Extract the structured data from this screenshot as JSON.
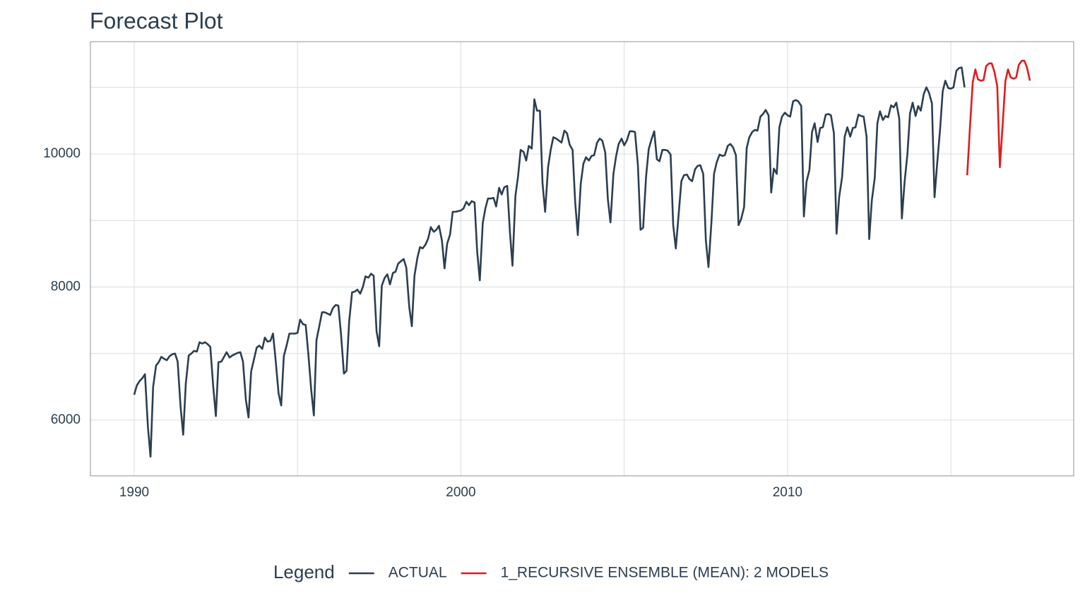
{
  "chart_data": {
    "type": "line",
    "title": "Forecast Plot",
    "legend_title": "Legend",
    "legend_position": "bottom",
    "grid": true,
    "xlim": [
      1988.66,
      2018.76
    ],
    "ylim": [
      5162,
      11687
    ],
    "xticks": [
      1990,
      2000,
      2010
    ],
    "yticks": [
      6000,
      8000,
      10000
    ],
    "x_minor_grid": [
      1995,
      2005,
      2015
    ],
    "y_minor_grid": [
      7000,
      9000,
      11000
    ],
    "series": [
      {
        "name": "ACTUAL",
        "color": "#2c3e50",
        "x": [
          1990,
          1990.08,
          1990.17,
          1990.25,
          1990.33,
          1990.42,
          1990.5,
          1990.58,
          1990.67,
          1990.75,
          1990.83,
          1990.92,
          1991,
          1991.08,
          1991.17,
          1991.25,
          1991.33,
          1991.42,
          1991.5,
          1991.58,
          1991.67,
          1991.75,
          1991.83,
          1991.92,
          1992,
          1992.08,
          1992.17,
          1992.25,
          1992.33,
          1992.42,
          1992.5,
          1992.58,
          1992.67,
          1992.75,
          1992.83,
          1992.92,
          1993,
          1993.08,
          1993.17,
          1993.25,
          1993.33,
          1993.42,
          1993.5,
          1993.58,
          1993.67,
          1993.75,
          1993.83,
          1993.92,
          1994,
          1994.08,
          1994.17,
          1994.25,
          1994.33,
          1994.42,
          1994.5,
          1994.58,
          1994.67,
          1994.75,
          1994.83,
          1994.92,
          1995,
          1995.08,
          1995.17,
          1995.25,
          1995.33,
          1995.42,
          1995.5,
          1995.58,
          1995.67,
          1995.75,
          1995.83,
          1995.92,
          1996,
          1996.08,
          1996.17,
          1996.25,
          1996.33,
          1996.42,
          1996.5,
          1996.58,
          1996.67,
          1996.75,
          1996.83,
          1996.92,
          1997,
          1997.08,
          1997.17,
          1997.25,
          1997.33,
          1997.42,
          1997.5,
          1997.58,
          1997.67,
          1997.75,
          1997.83,
          1997.92,
          1998,
          1998.08,
          1998.17,
          1998.25,
          1998.33,
          1998.42,
          1998.5,
          1998.58,
          1998.67,
          1998.75,
          1998.83,
          1998.92,
          1999,
          1999.08,
          1999.17,
          1999.25,
          1999.33,
          1999.42,
          1999.5,
          1999.58,
          1999.67,
          1999.75,
          1999.83,
          1999.92,
          2000,
          2000.08,
          2000.17,
          2000.25,
          2000.33,
          2000.42,
          2000.5,
          2000.58,
          2000.67,
          2000.75,
          2000.83,
          2000.92,
          2001,
          2001.08,
          2001.17,
          2001.25,
          2001.33,
          2001.42,
          2001.5,
          2001.58,
          2001.67,
          2001.75,
          2001.83,
          2001.92,
          2002,
          2002.08,
          2002.17,
          2002.25,
          2002.33,
          2002.42,
          2002.5,
          2002.58,
          2002.67,
          2002.75,
          2002.83,
          2002.92,
          2003,
          2003.08,
          2003.17,
          2003.25,
          2003.33,
          2003.42,
          2003.5,
          2003.58,
          2003.67,
          2003.75,
          2003.83,
          2003.92,
          2004,
          2004.08,
          2004.17,
          2004.25,
          2004.33,
          2004.42,
          2004.5,
          2004.58,
          2004.67,
          2004.75,
          2004.83,
          2004.92,
          2005,
          2005.08,
          2005.17,
          2005.25,
          2005.33,
          2005.42,
          2005.5,
          2005.58,
          2005.67,
          2005.75,
          2005.83,
          2005.92,
          2006,
          2006.08,
          2006.17,
          2006.25,
          2006.33,
          2006.42,
          2006.5,
          2006.58,
          2006.67,
          2006.75,
          2006.83,
          2006.92,
          2007,
          2007.08,
          2007.17,
          2007.25,
          2007.33,
          2007.42,
          2007.5,
          2007.58,
          2007.67,
          2007.75,
          2007.83,
          2007.92,
          2008,
          2008.08,
          2008.17,
          2008.25,
          2008.33,
          2008.42,
          2008.5,
          2008.58,
          2008.67,
          2008.75,
          2008.83,
          2008.92,
          2009,
          2009.08,
          2009.17,
          2009.25,
          2009.33,
          2009.42,
          2009.5,
          2009.58,
          2009.67,
          2009.75,
          2009.83,
          2009.92,
          2010,
          2010.08,
          2010.17,
          2010.25,
          2010.33,
          2010.42,
          2010.5,
          2010.58,
          2010.67,
          2010.75,
          2010.83,
          2010.92,
          2011,
          2011.08,
          2011.17,
          2011.25,
          2011.33,
          2011.42,
          2011.5,
          2011.58,
          2011.67,
          2011.75,
          2011.83,
          2011.92,
          2012,
          2012.08,
          2012.17,
          2012.25,
          2012.33,
          2012.42,
          2012.5,
          2012.58,
          2012.67,
          2012.75,
          2012.83,
          2012.92,
          2013,
          2013.08,
          2013.17,
          2013.25,
          2013.33,
          2013.42,
          2013.5,
          2013.58,
          2013.67,
          2013.75,
          2013.83,
          2013.92,
          2014,
          2014.08,
          2014.17,
          2014.25,
          2014.33,
          2014.42,
          2014.5,
          2014.58,
          2014.67,
          2014.75,
          2014.83,
          2014.92,
          2015,
          2015.08,
          2015.17,
          2015.25,
          2015.33,
          2015.42
        ],
        "values": [
          6380,
          6520,
          6590,
          6630,
          6690,
          5900,
          5450,
          6500,
          6820,
          6870,
          6950,
          6920,
          6900,
          6960,
          6990,
          7000,
          6880,
          6200,
          5780,
          6550,
          6970,
          7000,
          7040,
          7030,
          7170,
          7150,
          7170,
          7140,
          7100,
          6500,
          6060,
          6870,
          6880,
          6950,
          7020,
          6940,
          6970,
          6990,
          7010,
          7020,
          6880,
          6300,
          6040,
          6730,
          6920,
          7090,
          7120,
          7070,
          7240,
          7180,
          7190,
          7300,
          6900,
          6400,
          6220,
          6960,
          7130,
          7300,
          7300,
          7300,
          7310,
          7510,
          7440,
          7430,
          7000,
          6450,
          6070,
          7200,
          7420,
          7620,
          7620,
          7600,
          7580,
          7680,
          7730,
          7720,
          7300,
          6700,
          6740,
          7480,
          7920,
          7930,
          7960,
          7900,
          8000,
          8160,
          8140,
          8200,
          8170,
          7330,
          7110,
          8020,
          8140,
          8190,
          8040,
          8210,
          8230,
          8350,
          8390,
          8420,
          8290,
          7700,
          7410,
          8170,
          8440,
          8600,
          8580,
          8640,
          8730,
          8900,
          8830,
          8860,
          8920,
          8700,
          8280,
          8650,
          8790,
          9130,
          9130,
          9140,
          9150,
          9180,
          9280,
          9230,
          9290,
          9270,
          8530,
          8100,
          8960,
          9180,
          9330,
          9330,
          9340,
          9210,
          9490,
          9390,
          9500,
          9520,
          8840,
          8320,
          9370,
          9660,
          10060,
          10030,
          9900,
          10120,
          10080,
          10820,
          10650,
          10650,
          9560,
          9130,
          9800,
          10060,
          10250,
          10230,
          10200,
          10170,
          10350,
          10310,
          10140,
          10060,
          9270,
          8780,
          9550,
          9850,
          9950,
          9900,
          9970,
          9980,
          10170,
          10230,
          10200,
          10020,
          9320,
          8970,
          9700,
          9960,
          10150,
          10230,
          10130,
          10200,
          10340,
          10340,
          10330,
          9830,
          8860,
          8890,
          9660,
          10070,
          10210,
          10340,
          9920,
          9890,
          10060,
          10060,
          10050,
          9990,
          8930,
          8580,
          9110,
          9590,
          9680,
          9690,
          9620,
          9590,
          9770,
          9820,
          9830,
          9700,
          8700,
          8300,
          8970,
          9700,
          9870,
          9990,
          9970,
          9980,
          10120,
          10150,
          10100,
          9980,
          8930,
          9020,
          9200,
          10090,
          10250,
          10330,
          10360,
          10350,
          10560,
          10600,
          10660,
          10580,
          9420,
          9780,
          9700,
          10400,
          10560,
          10620,
          10580,
          10560,
          10790,
          10810,
          10790,
          10720,
          9060,
          9580,
          9760,
          10330,
          10460,
          10180,
          10390,
          10400,
          10590,
          10600,
          10580,
          10310,
          8800,
          9350,
          9650,
          10260,
          10400,
          10260,
          10390,
          10400,
          10590,
          10570,
          10560,
          10260,
          8720,
          9300,
          9640,
          10460,
          10640,
          10510,
          10570,
          10550,
          10730,
          10700,
          10770,
          10530,
          9030,
          9560,
          10000,
          10610,
          10770,
          10570,
          10720,
          10650,
          10900,
          11000,
          10920,
          10760,
          9350,
          9850,
          10370,
          10940,
          11100,
          10990,
          10980,
          11000,
          11250,
          11290,
          11300,
          11000
        ]
      },
      {
        "name": "1_RECURSIVE ENSEMBLE (MEAN): 2 MODELS",
        "color": "#e31a1c",
        "x": [
          2015.5,
          2015.58,
          2015.67,
          2015.75,
          2015.83,
          2015.92,
          2016,
          2016.08,
          2016.17,
          2016.25,
          2016.33,
          2016.42,
          2016.5,
          2016.58,
          2016.67,
          2016.75,
          2016.83,
          2016.92,
          2017,
          2017.08,
          2017.17,
          2017.25,
          2017.33,
          2017.42
        ],
        "values": [
          9680,
          10370,
          11080,
          11270,
          11120,
          11100,
          11110,
          11320,
          11360,
          11360,
          11240,
          11020,
          9800,
          10400,
          11100,
          11270,
          11150,
          11130,
          11150,
          11340,
          11400,
          11400,
          11300,
          11100
        ]
      }
    ]
  }
}
